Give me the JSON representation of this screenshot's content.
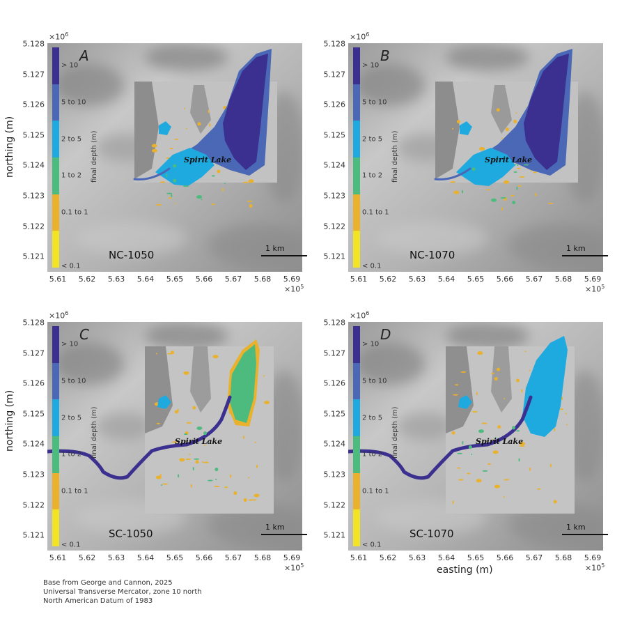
{
  "axes": {
    "x_ticks": [
      "5.61",
      "5.62",
      "5.63",
      "5.64",
      "5.65",
      "5.66",
      "5.67",
      "5.68",
      "5.69"
    ],
    "y_ticks": [
      "5.128",
      "5.127",
      "5.126",
      "5.125",
      "5.124",
      "5.123",
      "5.122",
      "5.121"
    ],
    "x_multiplier": "×10",
    "x_exp": "5",
    "y_multiplier": "×10",
    "y_exp": "6",
    "xlabel": "easting (m)",
    "ylabel": "northing (m)"
  },
  "colorbar": {
    "title": "final depth (m)",
    "classes": [
      {
        "label": "> 10",
        "color": "#3b2f8f"
      },
      {
        "label": "5 to 10",
        "color": "#4a68b6"
      },
      {
        "label": "2 to 5",
        "color": "#1eaadf"
      },
      {
        "label": "1 to 2",
        "color": "#4dba7e"
      },
      {
        "label": "0.1 to 1",
        "color": "#e9b12c"
      },
      {
        "label": "< 0.1",
        "color": "#f2e324"
      }
    ]
  },
  "panels": [
    {
      "letter": "A",
      "scenario": "NC-1050",
      "lake_label": "Spirit Lake",
      "scale_label": "1 km"
    },
    {
      "letter": "B",
      "scenario": "NC-1070",
      "lake_label": "Spirit Lake",
      "scale_label": "1 km"
    },
    {
      "letter": "C",
      "scenario": "SC-1050",
      "lake_label": "Spirit Lake",
      "scale_label": "1 km"
    },
    {
      "letter": "D",
      "scenario": "SC-1070",
      "lake_label": "Spirit Lake",
      "scale_label": "1 km"
    }
  ],
  "credits": [
    "Base from George and Cannon, 2025",
    "Universal Transverse Mercator, zone 10 north",
    "North American Datum of 1983"
  ]
}
